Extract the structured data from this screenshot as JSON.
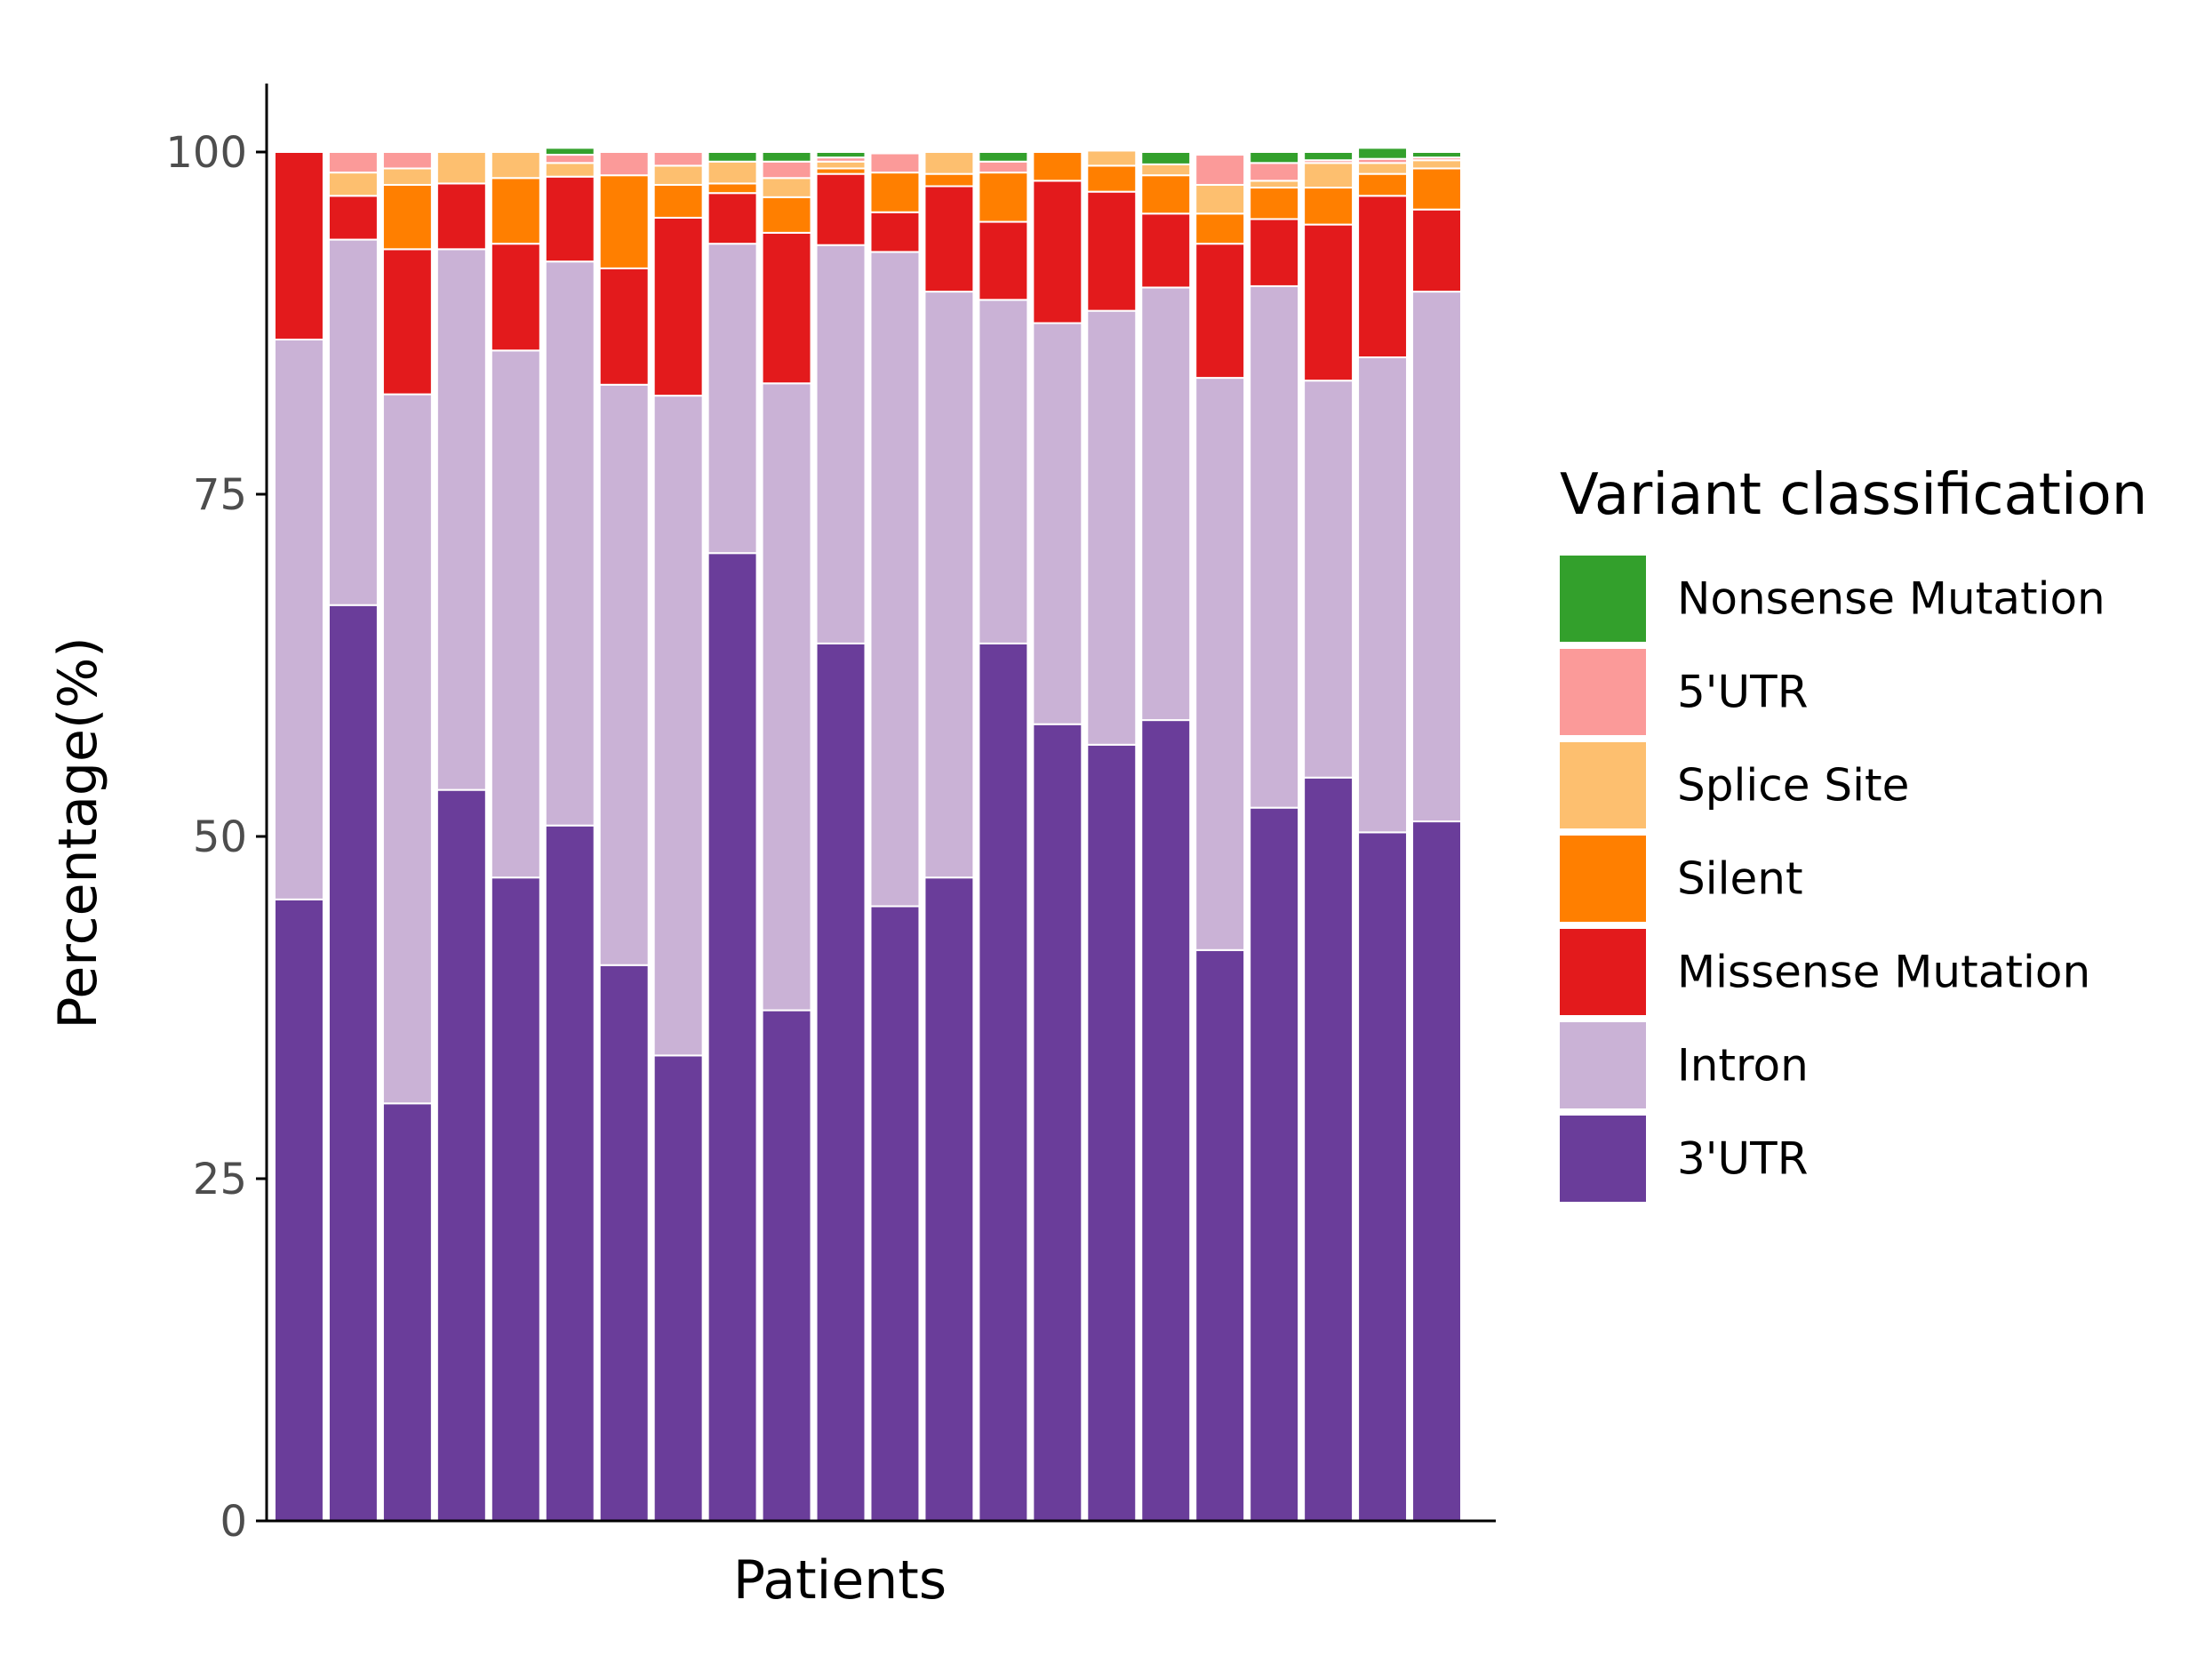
{
  "chart_data": {
    "type": "bar",
    "stacked": true,
    "xlabel": "Patients",
    "ylabel": "Percentage(%)",
    "ylim": [
      0,
      105
    ],
    "yticks": [
      0,
      25,
      50,
      75,
      100
    ],
    "grid": false,
    "legend": {
      "title": "Variant classification",
      "position": "right",
      "order": [
        "Nonsense Mutation",
        "5'UTR",
        "Splice Site",
        "Silent",
        "Missense Mutation",
        "Intron",
        "3'UTR"
      ]
    },
    "series": [
      {
        "name": "3'UTR",
        "color": "#6a3d9a",
        "values": [
          45.4,
          66.9,
          30.5,
          53.4,
          47.0,
          50.8,
          40.6,
          34.0,
          70.7,
          37.3,
          64.1,
          44.9,
          47.0,
          64.1,
          58.2,
          56.7,
          58.5,
          41.7,
          52.1,
          54.3,
          50.3,
          51.1
        ]
      },
      {
        "name": "Intron",
        "color": "#cab2d6",
        "values": [
          40.9,
          26.7,
          51.8,
          39.5,
          38.5,
          41.2,
          42.4,
          48.2,
          22.6,
          45.8,
          29.1,
          47.8,
          42.8,
          25.1,
          29.3,
          31.7,
          31.6,
          41.8,
          38.1,
          29.0,
          34.7,
          38.7
        ]
      },
      {
        "name": "Missense Mutation",
        "color": "#e31a1c",
        "values": [
          13.7,
          3.2,
          10.6,
          4.8,
          7.8,
          6.2,
          8.5,
          13.0,
          3.7,
          11.0,
          5.2,
          2.9,
          7.7,
          5.7,
          10.4,
          8.7,
          5.4,
          9.8,
          4.9,
          11.4,
          11.8,
          6.0
        ]
      },
      {
        "name": "Silent",
        "color": "#ff7f00",
        "values": [
          0,
          0,
          4.7,
          0,
          4.8,
          0,
          6.8,
          2.4,
          0.7,
          2.6,
          0.4,
          2.9,
          0.9,
          3.6,
          2.1,
          1.9,
          2.8,
          2.2,
          2.3,
          2.7,
          1.6,
          3.0
        ]
      },
      {
        "name": "Splice Site",
        "color": "#fdbf6f",
        "values": [
          0,
          1.7,
          1.2,
          2.3,
          1.9,
          1.0,
          0,
          1.4,
          1.6,
          1.4,
          0.5,
          0,
          1.6,
          0,
          0,
          1.1,
          0.8,
          2.1,
          0.5,
          1.8,
          0.8,
          0.6
        ]
      },
      {
        "name": "5'UTR",
        "color": "#fb9a99",
        "values": [
          0,
          1.5,
          1.2,
          0,
          0,
          0.6,
          1.7,
          1.0,
          0,
          1.2,
          0.3,
          1.4,
          0,
          0.8,
          0,
          0,
          0,
          2.2,
          1.3,
          0.2,
          0.3,
          0.2
        ]
      },
      {
        "name": "Nonsense Mutation",
        "color": "#33a02c",
        "values": [
          0,
          0,
          0,
          0,
          0,
          0.5,
          0,
          0,
          0.7,
          0.7,
          0.4,
          0,
          0,
          0.7,
          0,
          0,
          0.9,
          0,
          0.8,
          0.6,
          0.8,
          0.4
        ]
      }
    ]
  }
}
